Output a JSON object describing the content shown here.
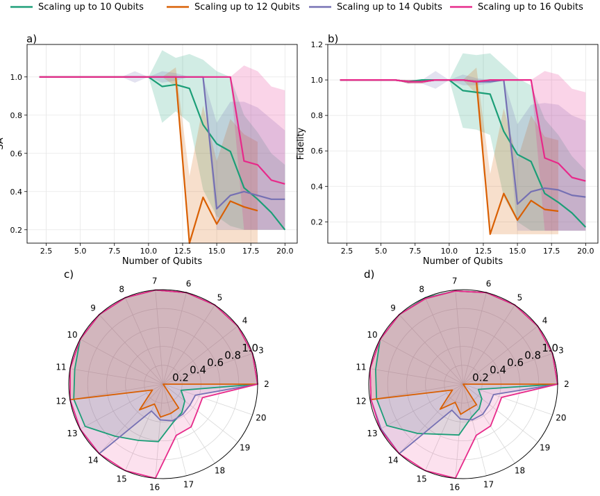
{
  "legend": {
    "items": [
      {
        "label": "Scaling up to 10 Qubits",
        "color": "#1b9e77"
      },
      {
        "label": "Scaling up to 12 Qubits",
        "color": "#d95f02"
      },
      {
        "label": "Scaling up to 14 Qubits",
        "color": "#7570b3"
      },
      {
        "label": "Scaling up to 16 Qubits",
        "color": "#e7298a"
      }
    ]
  },
  "chart_data": [
    {
      "panel": "a)",
      "type": "line",
      "title": "",
      "xlabel": "Number of Qubits",
      "ylabel": "SA",
      "xlim": [
        1.1,
        20.9
      ],
      "ylim": [
        0.13,
        1.17
      ],
      "xticks": [
        "2.5",
        "5.0",
        "7.5",
        "10.0",
        "12.5",
        "15.0",
        "17.5",
        "20.0"
      ],
      "xtick_values": [
        2.5,
        5,
        7.5,
        10,
        12.5,
        15,
        17.5,
        20
      ],
      "yticks": [
        "0.2",
        "0.4",
        "0.6",
        "0.8",
        "1.0"
      ],
      "ytick_values": [
        0.2,
        0.4,
        0.6,
        0.8,
        1.0
      ],
      "grid": true,
      "series": [
        {
          "name": "Scaling up to 10 Qubits",
          "x": [
            2,
            3,
            4,
            5,
            6,
            7,
            8,
            9,
            10,
            11,
            12,
            13,
            14,
            15,
            16,
            17,
            18,
            19,
            20
          ],
          "y": [
            1.0,
            1.0,
            1.0,
            1.0,
            1.0,
            1.0,
            1.0,
            1.0,
            1.0,
            0.95,
            0.96,
            0.94,
            0.75,
            0.65,
            0.61,
            0.42,
            0.36,
            0.29,
            0.2
          ],
          "upper": [
            1.0,
            1.0,
            1.0,
            1.0,
            1.0,
            1.0,
            1.0,
            1.0,
            1.0,
            1.14,
            1.1,
            1.12,
            1.09,
            1.03,
            1.0,
            0.8,
            0.71,
            0.6,
            0.54
          ],
          "lower": [
            1.0,
            1.0,
            1.0,
            1.0,
            1.0,
            1.0,
            1.0,
            1.0,
            1.0,
            0.76,
            0.82,
            0.76,
            0.41,
            0.27,
            0.22,
            0.2,
            0.2,
            0.2,
            0.2
          ]
        },
        {
          "name": "Scaling up to 12 Qubits",
          "x": [
            2,
            3,
            4,
            5,
            6,
            7,
            8,
            9,
            10,
            11,
            12,
            13,
            14,
            15,
            16,
            17,
            18
          ],
          "y": [
            1.0,
            1.0,
            1.0,
            1.0,
            1.0,
            1.0,
            1.0,
            1.0,
            1.0,
            1.0,
            1.0,
            0.13,
            0.37,
            0.23,
            0.35,
            0.32,
            0.3
          ],
          "upper": [
            1.0,
            1.0,
            1.0,
            1.0,
            1.0,
            1.0,
            1.0,
            1.0,
            1.0,
            1.0,
            1.05,
            0.48,
            0.85,
            0.56,
            0.78,
            0.7,
            0.66
          ],
          "lower": [
            1.0,
            1.0,
            1.0,
            1.0,
            1.0,
            1.0,
            1.0,
            1.0,
            1.0,
            1.0,
            0.95,
            0.13,
            0.13,
            0.13,
            0.13,
            0.13,
            0.13
          ]
        },
        {
          "name": "Scaling up to 14 Qubits",
          "x": [
            2,
            3,
            4,
            5,
            6,
            7,
            8,
            9,
            10,
            11,
            12,
            13,
            14,
            15,
            16,
            17,
            18,
            19,
            20
          ],
          "y": [
            1.0,
            1.0,
            1.0,
            1.0,
            1.0,
            1.0,
            1.0,
            1.0,
            1.0,
            1.0,
            1.0,
            1.0,
            1.0,
            0.31,
            0.38,
            0.4,
            0.38,
            0.36,
            0.36
          ],
          "upper": [
            1.0,
            1.0,
            1.0,
            1.0,
            1.0,
            1.0,
            1.0,
            1.03,
            1.0,
            1.03,
            1.02,
            1.0,
            1.0,
            0.76,
            0.87,
            0.87,
            0.84,
            0.78,
            0.72
          ],
          "lower": [
            1.0,
            1.0,
            1.0,
            1.0,
            1.0,
            1.0,
            1.0,
            0.97,
            1.0,
            0.97,
            0.98,
            1.0,
            1.0,
            0.2,
            0.2,
            0.2,
            0.2,
            0.2,
            0.2
          ]
        },
        {
          "name": "Scaling up to 16 Qubits",
          "x": [
            2,
            3,
            4,
            5,
            6,
            7,
            8,
            9,
            10,
            11,
            12,
            13,
            14,
            15,
            16,
            17,
            18,
            19,
            20
          ],
          "y": [
            1.0,
            1.0,
            1.0,
            1.0,
            1.0,
            1.0,
            1.0,
            1.0,
            1.0,
            1.0,
            1.0,
            1.0,
            1.0,
            1.0,
            1.0,
            0.56,
            0.54,
            0.46,
            0.44
          ],
          "upper": [
            1.0,
            1.0,
            1.0,
            1.0,
            1.0,
            1.0,
            1.0,
            1.0,
            1.0,
            1.0,
            1.0,
            1.0,
            1.0,
            1.0,
            1.0,
            1.06,
            1.03,
            0.95,
            0.93
          ],
          "lower": [
            1.0,
            1.0,
            1.0,
            1.0,
            1.0,
            1.0,
            1.0,
            1.0,
            1.0,
            1.0,
            1.0,
            1.0,
            1.0,
            1.0,
            1.0,
            0.2,
            0.2,
            0.2,
            0.2
          ]
        }
      ]
    },
    {
      "panel": "b)",
      "type": "line",
      "title": "",
      "xlabel": "Number of Qubits",
      "ylabel": "Fidelity",
      "xlim": [
        1.1,
        20.9
      ],
      "ylim": [
        0.08,
        1.2
      ],
      "xticks": [
        "2.5",
        "5.0",
        "7.5",
        "10.0",
        "12.5",
        "15.0",
        "17.5",
        "20.0"
      ],
      "xtick_values": [
        2.5,
        5,
        7.5,
        10,
        12.5,
        15,
        17.5,
        20
      ],
      "yticks": [
        "0.2",
        "0.4",
        "0.6",
        "0.8",
        "1.0",
        "1.2"
      ],
      "ytick_values": [
        0.2,
        0.4,
        0.6,
        0.8,
        1.0,
        1.2
      ],
      "grid": true,
      "series": [
        {
          "name": "Scaling up to 10 Qubits",
          "x": [
            2,
            3,
            4,
            5,
            6,
            7,
            8,
            9,
            10,
            11,
            12,
            13,
            14,
            15,
            16,
            17,
            18,
            19,
            20
          ],
          "y": [
            1.0,
            1.0,
            1.0,
            1.0,
            1.0,
            0.99,
            1.0,
            1.0,
            1.0,
            0.94,
            0.93,
            0.92,
            0.71,
            0.58,
            0.54,
            0.36,
            0.31,
            0.25,
            0.17
          ],
          "upper": [
            1.0,
            1.0,
            1.0,
            1.0,
            1.0,
            1.0,
            1.0,
            1.0,
            1.0,
            1.15,
            1.14,
            1.15,
            1.08,
            1.01,
            0.97,
            0.78,
            0.69,
            0.57,
            0.49
          ],
          "lower": [
            1.0,
            1.0,
            1.0,
            1.0,
            1.0,
            0.98,
            1.0,
            1.0,
            1.0,
            0.73,
            0.72,
            0.69,
            0.34,
            0.2,
            0.15,
            0.15,
            0.15,
            0.15,
            0.15
          ]
        },
        {
          "name": "Scaling up to 12 Qubits",
          "x": [
            2,
            3,
            4,
            5,
            6,
            7,
            8,
            9,
            10,
            11,
            12,
            13,
            14,
            15,
            16,
            17,
            18
          ],
          "y": [
            1.0,
            1.0,
            1.0,
            1.0,
            1.0,
            0.99,
            0.99,
            1.0,
            1.0,
            1.0,
            0.99,
            0.13,
            0.36,
            0.21,
            0.32,
            0.27,
            0.26
          ],
          "upper": [
            1.0,
            1.0,
            1.0,
            1.0,
            1.0,
            1.0,
            1.0,
            1.0,
            1.0,
            1.0,
            1.07,
            0.47,
            0.84,
            0.55,
            0.8,
            0.68,
            0.66
          ],
          "lower": [
            1.0,
            1.0,
            1.0,
            1.0,
            1.0,
            0.98,
            0.98,
            1.0,
            1.0,
            1.0,
            0.92,
            0.13,
            0.13,
            0.13,
            0.13,
            0.13,
            0.13
          ]
        },
        {
          "name": "Scaling up to 14 Qubits",
          "x": [
            2,
            3,
            4,
            5,
            6,
            7,
            8,
            9,
            10,
            11,
            12,
            13,
            14,
            15,
            16,
            17,
            18,
            19,
            20
          ],
          "y": [
            1.0,
            1.0,
            1.0,
            1.0,
            1.0,
            0.99,
            0.99,
            1.0,
            1.0,
            1.0,
            0.99,
            0.99,
            1.0,
            0.3,
            0.37,
            0.39,
            0.38,
            0.35,
            0.34
          ],
          "upper": [
            1.0,
            1.0,
            1.0,
            1.0,
            1.0,
            1.0,
            1.0,
            1.05,
            1.0,
            1.03,
            1.01,
            1.0,
            1.0,
            0.75,
            0.86,
            0.87,
            0.86,
            0.8,
            0.77
          ],
          "lower": [
            1.0,
            1.0,
            1.0,
            1.0,
            1.0,
            0.98,
            0.98,
            0.95,
            1.0,
            0.97,
            0.97,
            0.98,
            1.0,
            0.15,
            0.15,
            0.15,
            0.15,
            0.15,
            0.15
          ]
        },
        {
          "name": "Scaling up to 16 Qubits",
          "x": [
            2,
            3,
            4,
            5,
            6,
            7,
            8,
            9,
            10,
            11,
            12,
            13,
            14,
            15,
            16,
            17,
            18,
            19,
            20
          ],
          "y": [
            1.0,
            1.0,
            1.0,
            1.0,
            1.0,
            0.99,
            0.99,
            1.0,
            1.0,
            1.0,
            0.99,
            1.0,
            1.0,
            1.0,
            1.0,
            0.56,
            0.53,
            0.45,
            0.43
          ],
          "upper": [
            1.0,
            1.0,
            1.0,
            1.0,
            1.0,
            1.0,
            1.0,
            1.0,
            1.0,
            1.0,
            1.0,
            1.0,
            1.0,
            1.0,
            1.0,
            1.05,
            1.03,
            0.95,
            0.93
          ],
          "lower": [
            1.0,
            1.0,
            1.0,
            1.0,
            1.0,
            0.98,
            0.98,
            1.0,
            1.0,
            1.0,
            0.98,
            1.0,
            1.0,
            1.0,
            1.0,
            0.15,
            0.15,
            0.15,
            0.15
          ]
        }
      ]
    },
    {
      "panel": "c)",
      "type": "radar",
      "metric": "SA",
      "angle_labels": [
        "2",
        "3",
        "4",
        "5",
        "6",
        "7",
        "8",
        "9",
        "10",
        "11",
        "12",
        "13",
        "14",
        "15",
        "16",
        "17",
        "18",
        "19",
        "20"
      ],
      "r_ticks": [
        "0.2",
        "0.4",
        "0.6",
        "0.8",
        "1.0"
      ],
      "r_tick_values": [
        0.2,
        0.4,
        0.6,
        0.8,
        1.0
      ],
      "rlim": [
        0,
        1.0
      ],
      "series": [
        {
          "name": "Scaling up to 10 Qubits",
          "values": [
            1.0,
            1.0,
            1.0,
            1.0,
            1.0,
            1.0,
            1.0,
            1.0,
            1.0,
            0.95,
            0.96,
            0.94,
            0.75,
            0.65,
            0.61,
            0.42,
            0.36,
            0.29,
            0.2
          ]
        },
        {
          "name": "Scaling up to 12 Qubits",
          "values": [
            1.0,
            1.0,
            1.0,
            1.0,
            1.0,
            1.0,
            1.0,
            1.0,
            1.0,
            1.0,
            1.0,
            0.13,
            0.37,
            0.23,
            0.35,
            0.32,
            0.3,
            0,
            0
          ]
        },
        {
          "name": "Scaling up to 14 Qubits",
          "values": [
            1.0,
            1.0,
            1.0,
            1.0,
            1.0,
            1.0,
            1.0,
            1.0,
            1.0,
            1.0,
            1.0,
            1.0,
            1.0,
            0.31,
            0.38,
            0.4,
            0.38,
            0.36,
            0.36
          ]
        },
        {
          "name": "Scaling up to 16 Qubits",
          "values": [
            1.0,
            1.0,
            1.0,
            1.0,
            1.0,
            1.0,
            1.0,
            1.0,
            1.0,
            1.0,
            1.0,
            1.0,
            1.0,
            1.0,
            1.0,
            0.56,
            0.54,
            0.46,
            0.44
          ]
        }
      ]
    },
    {
      "panel": "d)",
      "type": "radar",
      "metric": "Fidelity",
      "angle_labels": [
        "2",
        "3",
        "4",
        "5",
        "6",
        "7",
        "8",
        "9",
        "10",
        "11",
        "12",
        "13",
        "14",
        "15",
        "16",
        "17",
        "18",
        "19",
        "20"
      ],
      "r_ticks": [
        "0.2",
        "0.4",
        "0.6",
        "0.8",
        "1.0"
      ],
      "r_tick_values": [
        0.2,
        0.4,
        0.6,
        0.8,
        1.0
      ],
      "rlim": [
        0,
        1.0
      ],
      "series": [
        {
          "name": "Scaling up to 10 Qubits",
          "values": [
            1.0,
            1.0,
            1.0,
            1.0,
            1.0,
            0.99,
            1.0,
            1.0,
            1.0,
            0.94,
            0.93,
            0.92,
            0.71,
            0.58,
            0.54,
            0.36,
            0.31,
            0.25,
            0.17
          ]
        },
        {
          "name": "Scaling up to 12 Qubits",
          "values": [
            1.0,
            1.0,
            1.0,
            1.0,
            1.0,
            0.99,
            0.99,
            1.0,
            1.0,
            1.0,
            0.99,
            0.13,
            0.36,
            0.21,
            0.32,
            0.27,
            0.26,
            0,
            0
          ]
        },
        {
          "name": "Scaling up to 14 Qubits",
          "values": [
            1.0,
            1.0,
            1.0,
            1.0,
            1.0,
            0.99,
            0.99,
            1.0,
            1.0,
            1.0,
            0.99,
            0.99,
            1.0,
            0.3,
            0.37,
            0.39,
            0.38,
            0.35,
            0.34
          ]
        },
        {
          "name": "Scaling up to 16 Qubits",
          "values": [
            1.0,
            1.0,
            1.0,
            1.0,
            1.0,
            0.99,
            0.99,
            1.0,
            1.0,
            1.0,
            0.99,
            1.0,
            1.0,
            1.0,
            1.0,
            0.56,
            0.53,
            0.45,
            0.43
          ]
        }
      ]
    }
  ]
}
